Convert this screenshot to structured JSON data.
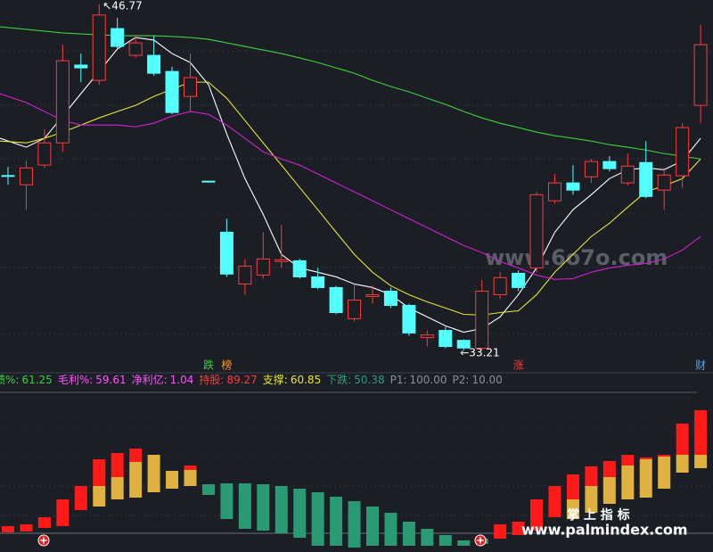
{
  "chart_data": {
    "type": "candlestick",
    "ylim": [
      32.96,
      46.94
    ],
    "up_color": "#ff3b3b",
    "down_color": "#54ffff",
    "open": [
      40.06,
      39.7,
      40.47,
      41.34,
      44.39,
      43.79,
      45.82,
      44.77,
      44.77,
      44.14,
      43.16,
      39.84,
      37.84,
      35.81,
      36.16,
      36.69,
      36.72,
      36.09,
      35.67,
      34.45,
      35.32,
      35.53,
      34.97,
      33.71,
      33.99,
      33.6,
      33.29,
      35.39,
      36.23,
      36.44,
      39.07,
      39.77,
      40.01,
      40.61,
      39.77,
      40.57,
      39.49,
      40.05,
      42.81
    ],
    "close": [
      40.04,
      40.36,
      41.34,
      44.56,
      44.28,
      46.35,
      45.12,
      45.26,
      44.07,
      42.53,
      43.9,
      39.84,
      36.2,
      36.51,
      36.79,
      36.76,
      36.09,
      35.67,
      34.69,
      35.18,
      35.39,
      34.97,
      33.89,
      33.81,
      33.36,
      33.3,
      35.53,
      36.06,
      35.67,
      39.31,
      39.77,
      39.49,
      40.61,
      40.33,
      40.43,
      39.24,
      40.08,
      41.94,
      45.19
    ],
    "high": [
      40.4,
      40.64,
      41.87,
      45.19,
      44.84,
      46.77,
      46.24,
      45.54,
      45.54,
      44.32,
      44.84,
      39.84,
      38.37,
      36.79,
      37.84,
      38.12,
      36.79,
      36.44,
      35.74,
      35.81,
      35.74,
      35.67,
      35.04,
      33.99,
      34.13,
      33.64,
      35.99,
      36.27,
      36.34,
      39.42,
      40.12,
      40.47,
      40.71,
      40.82,
      40.92,
      41.41,
      40.36,
      42.11,
      45.96
    ],
    "low": [
      39.7,
      38.72,
      40.36,
      40.99,
      43.72,
      43.62,
      45.02,
      44.67,
      43.97,
      42.46,
      42.57,
      39.84,
      36.09,
      35.39,
      36.02,
      36.44,
      36.02,
      35.6,
      34.62,
      34.34,
      35.04,
      34.87,
      33.78,
      33.36,
      33.29,
      33.21,
      33.25,
      35.22,
      35.53,
      36.27,
      38.96,
      39.31,
      39.77,
      40.22,
      39.66,
      39.17,
      38.72,
      39.59,
      42.11
    ],
    "averages": [
      {
        "color": "#ffffff",
        "values": [
          41.52,
          41.17,
          41.52,
          42.39,
          43.27,
          44.14,
          45.02,
          45.47,
          45.37,
          44.84,
          44.49,
          43.62,
          41.69,
          39.94,
          38.54,
          36.97,
          36.44,
          36.27,
          36.09,
          35.81,
          35.67,
          35.39,
          34.87,
          34.52,
          34.17,
          33.92,
          34.06,
          34.52,
          35.39,
          36.44,
          37.84,
          38.72,
          39.31,
          39.94,
          40.29,
          40.36,
          40.29,
          40.64,
          41.52
        ]
      },
      {
        "color": "#e6e632",
        "values": [
          41.41,
          41.34,
          41.52,
          41.76,
          42.04,
          42.32,
          42.57,
          42.81,
          43.16,
          43.44,
          43.72,
          43.72,
          43.09,
          42.22,
          41.34,
          40.47,
          39.59,
          38.72,
          37.84,
          36.97,
          36.27,
          35.74,
          35.39,
          35.11,
          34.87,
          34.62,
          34.59,
          34.69,
          34.76,
          35.39,
          36.27,
          36.97,
          37.67,
          38.19,
          38.82,
          39.42,
          39.66,
          39.94,
          40.71
        ]
      },
      {
        "color": "#d020d0",
        "values": [
          43.27,
          42.92,
          42.57,
          42.22,
          42.04,
          42.04,
          42.04,
          41.97,
          42.11,
          42.39,
          42.57,
          42.46,
          42.04,
          41.52,
          40.99,
          40.71,
          40.47,
          40.12,
          39.77,
          39.42,
          39.07,
          38.72,
          38.37,
          38.02,
          37.67,
          37.32,
          37.04,
          36.69,
          36.44,
          36.16,
          35.99,
          36.02,
          36.27,
          36.44,
          36.54,
          36.62,
          36.79,
          37.14,
          37.67
        ]
      },
      {
        "color": "#3cd23c",
        "values": [
          45.89,
          45.79,
          45.72,
          45.65,
          45.61,
          45.58,
          45.54,
          45.54,
          45.54,
          45.51,
          45.47,
          45.4,
          45.26,
          45.12,
          44.98,
          44.84,
          44.67,
          44.49,
          44.28,
          44.07,
          43.79,
          43.55,
          43.34,
          43.09,
          42.85,
          42.57,
          42.32,
          42.11,
          41.94,
          41.76,
          41.62,
          41.52,
          41.41,
          41.27,
          41.17,
          41.06,
          40.92,
          40.82,
          40.71
        ]
      }
    ],
    "high_label": "46.77",
    "low_label": "33.21",
    "flags": [
      {
        "text": "跌",
        "index": 11,
        "color": "#3cd23c"
      },
      {
        "text": "榜",
        "index": 12,
        "color": "#ff9a2e"
      },
      {
        "text": "涨",
        "index": 28,
        "color": "#ff3b3b"
      },
      {
        "text": "财",
        "index": 38,
        "color": "#4aa8ff"
      }
    ],
    "indicators": [
      {
        "label": "绩%:",
        "value": 61.25,
        "color": "#3cd23c"
      },
      {
        "label": "毛利%:",
        "value": 59.61,
        "color": "#ff55ff"
      },
      {
        "label": "净利亿:",
        "value": 1.04,
        "color": "#ff55ff"
      },
      {
        "label": "持股:",
        "value": 89.27,
        "color": "#ff3b3b"
      },
      {
        "label": "支撑:",
        "value": 60.85,
        "color": "#e6e632"
      },
      {
        "label": "下跌:",
        "value": 50.38,
        "color": "#2e9e7a"
      },
      {
        "label": "P1:",
        "value": {
          "value": 100,
          "label": "100.00"
        },
        "color": "#8a8f99"
      },
      {
        "label": "P2:",
        "value": {
          "value": 10,
          "label": "10.00"
        },
        "color": "#8a8f99"
      }
    ],
    "lower_ylim": [
      0,
      179
    ],
    "lower": {
      "base": [
        22,
        23,
        27,
        29,
        47,
        51,
        59,
        61,
        67,
        71,
        74,
        null,
        null,
        null,
        null,
        null,
        null,
        null,
        null,
        null,
        null,
        null,
        null,
        null,
        null,
        null,
        null,
        15,
        19,
        24,
        39,
        37,
        44,
        54,
        59,
        61,
        71,
        89,
        94
      ],
      "yellow": [
        null,
        null,
        null,
        null,
        null,
        23,
        25,
        40,
        42,
        20,
        18,
        null,
        null,
        null,
        null,
        null,
        null,
        null,
        null,
        null,
        null,
        null,
        null,
        null,
        null,
        null,
        null,
        null,
        null,
        null,
        null,
        22,
        30,
        30,
        38,
        43,
        36,
        20,
        15
      ],
      "red": [
        7,
        8,
        12,
        30,
        27,
        30,
        27,
        15,
        null,
        null,
        5,
        null,
        null,
        null,
        null,
        null,
        null,
        null,
        null,
        null,
        null,
        null,
        null,
        null,
        null,
        null,
        null,
        16,
        15,
        35,
        35,
        28,
        22,
        18,
        12,
        2,
        2,
        35,
        50
      ],
      "green_base": [
        null,
        null,
        null,
        null,
        null,
        null,
        null,
        null,
        null,
        null,
        null,
        64,
        37,
        26,
        24,
        21,
        16,
        7,
        7,
        5,
        7,
        7,
        7,
        7,
        7,
        7,
        9,
        null,
        null,
        null,
        null,
        null,
        null,
        null,
        null,
        null,
        null,
        null,
        null
      ],
      "green": [
        null,
        null,
        null,
        null,
        null,
        null,
        null,
        null,
        null,
        null,
        null,
        12,
        40,
        51,
        52,
        53,
        55,
        60,
        55,
        52,
        44,
        37,
        27,
        19,
        12,
        6,
        6,
        null,
        null,
        null,
        null,
        null,
        null,
        null,
        null,
        null,
        null,
        null,
        null
      ],
      "yellow_color": "#e0b040",
      "red_color": "#ff1a1a",
      "green_color": "#2a9a74"
    },
    "watermarks": [
      "www.6o7o.com",
      "掌 上 指 标",
      "www.palmindex.com"
    ]
  }
}
